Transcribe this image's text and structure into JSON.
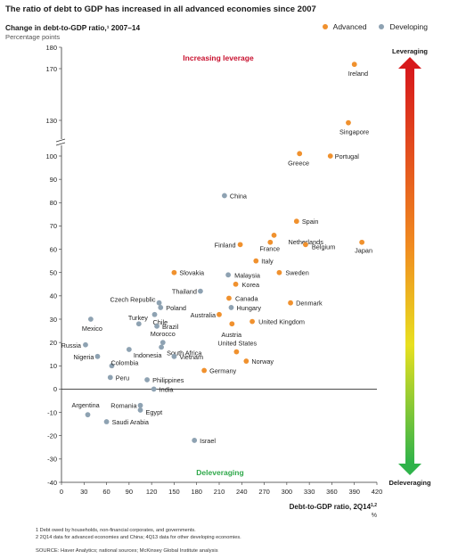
{
  "title": "The ratio of debt to GDP has increased in all advanced economies since 2007",
  "subtitle": "Change in debt-to-GDP ratio,¹ 2007–14",
  "subtitle_units": "Percentage points",
  "legend": [
    {
      "label": "Advanced",
      "color": "#f0912e"
    },
    {
      "label": "Developing",
      "color": "#8ea2b2"
    }
  ],
  "footnotes": [
    "1  Debt owed by households, non-financial corporates, and governments.",
    "2  2Q14 data for advanced economies and China; 4Q13 data for other developing economies."
  ],
  "source": "SOURCE: Haver Analytics; national sources; McKinsey Global Institute analysis",
  "chart_data": {
    "type": "scatter",
    "xlabel": "Debt-to-GDP ratio, 2Q14",
    "xlabel_sup": "1,2",
    "x_unit": "%",
    "xlim": [
      0,
      420
    ],
    "x_ticks": [
      0,
      30,
      60,
      90,
      120,
      150,
      180,
      210,
      240,
      270,
      300,
      330,
      360,
      390,
      420
    ],
    "ylim": [
      -40,
      180
    ],
    "y_axis_break": "between 100 and 170",
    "y_ticks": [
      {
        "label": "-40",
        "v": -40
      },
      {
        "label": "-30",
        "v": -30
      },
      {
        "label": "-20",
        "v": -20
      },
      {
        "label": "-10",
        "v": -10
      },
      {
        "label": "0",
        "v": 0
      },
      {
        "label": "10",
        "v": 10
      },
      {
        "label": "20",
        "v": 20
      },
      {
        "label": "30",
        "v": 30
      },
      {
        "label": "40",
        "v": 40
      },
      {
        "label": "50",
        "v": 50
      },
      {
        "label": "60",
        "v": 60
      },
      {
        "label": "70",
        "v": 70
      },
      {
        "label": "80",
        "v": 80
      },
      {
        "label": "90",
        "v": 90
      },
      {
        "label": "100",
        "v": 100
      },
      {
        "label": "130",
        "v": 130
      },
      {
        "label": "170",
        "v": 170
      },
      {
        "label": "180",
        "v": 180
      }
    ],
    "annotations": {
      "increasing": "Increasing leverage",
      "decreasing": "Deleveraging",
      "bar_top": "Leveraging",
      "bar_bottom": "Deleveraging"
    },
    "series": [
      {
        "name": "Advanced",
        "color": "#f0912e",
        "points": [
          {
            "label": "Ireland",
            "x": 390,
            "y": 172
          },
          {
            "label": "Singapore",
            "x": 382,
            "y": 128
          },
          {
            "label": "Greece",
            "x": 317,
            "y": 102
          },
          {
            "label": "Portugal",
            "x": 358,
            "y": 100
          },
          {
            "label": "Spain",
            "x": 313,
            "y": 72
          },
          {
            "label": "Netherlands",
            "x": 283,
            "y": 66
          },
          {
            "label": "France",
            "x": 278,
            "y": 63
          },
          {
            "label": "Finland",
            "x": 238,
            "y": 62
          },
          {
            "label": "Belgium",
            "x": 325,
            "y": 62
          },
          {
            "label": "Japan",
            "x": 400,
            "y": 63
          },
          {
            "label": "Italy",
            "x": 259,
            "y": 55
          },
          {
            "label": "Sweden",
            "x": 290,
            "y": 50
          },
          {
            "label": "Slovakia",
            "x": 150,
            "y": 50
          },
          {
            "label": "Korea",
            "x": 232,
            "y": 45
          },
          {
            "label": "Canada",
            "x": 223,
            "y": 39
          },
          {
            "label": "Denmark",
            "x": 305,
            "y": 37
          },
          {
            "label": "Australia",
            "x": 210,
            "y": 32
          },
          {
            "label": "United Kingdom",
            "x": 254,
            "y": 29
          },
          {
            "label": "Austria",
            "x": 227,
            "y": 28
          },
          {
            "label": "United States",
            "x": 233,
            "y": 16
          },
          {
            "label": "Norway",
            "x": 246,
            "y": 12
          },
          {
            "label": "Germany",
            "x": 190,
            "y": 8
          }
        ]
      },
      {
        "name": "Developing",
        "color": "#8ea2b2",
        "points": [
          {
            "label": "China",
            "x": 217,
            "y": 83
          },
          {
            "label": "Malaysia",
            "x": 222,
            "y": 49
          },
          {
            "label": "Thailand",
            "x": 185,
            "y": 42
          },
          {
            "label": "Czech Republic",
            "x": 130,
            "y": 37
          },
          {
            "label": "Poland",
            "x": 132,
            "y": 35
          },
          {
            "label": "Hungary",
            "x": 226,
            "y": 35
          },
          {
            "label": "Chile",
            "x": 124,
            "y": 32
          },
          {
            "label": "Turkey",
            "x": 103,
            "y": 28
          },
          {
            "label": "Mexico",
            "x": 39,
            "y": 30
          },
          {
            "label": "Brazil",
            "x": 127,
            "y": 27
          },
          {
            "label": "Morocco",
            "x": 135,
            "y": 20
          },
          {
            "label": "Russia",
            "x": 32,
            "y": 19
          },
          {
            "label": "South Africa",
            "x": 133,
            "y": 18
          },
          {
            "label": "Indonesia",
            "x": 90,
            "y": 17
          },
          {
            "label": "Vietnam",
            "x": 150,
            "y": 14
          },
          {
            "label": "Nigeria",
            "x": 48,
            "y": 14
          },
          {
            "label": "Colombia",
            "x": 67,
            "y": 10
          },
          {
            "label": "Peru",
            "x": 65,
            "y": 5
          },
          {
            "label": "Philippines",
            "x": 114,
            "y": 4
          },
          {
            "label": "India",
            "x": 123,
            "y": 0
          },
          {
            "label": "Romania",
            "x": 105,
            "y": -7
          },
          {
            "label": "Egypt",
            "x": 105,
            "y": -9
          },
          {
            "label": "Argentina",
            "x": 35,
            "y": -11
          },
          {
            "label": "Saudi Arabia",
            "x": 60,
            "y": -14
          },
          {
            "label": "Israel",
            "x": 177,
            "y": -22
          }
        ]
      }
    ]
  }
}
